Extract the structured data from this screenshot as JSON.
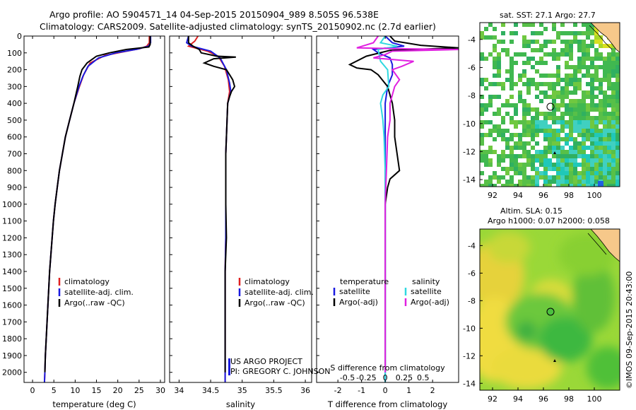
{
  "header": {
    "title_line1": "Argo profile: AO 5904571_14 04-Sep-2015 20150904_989 8.505S 96.538E",
    "title_line2": "Climatology: CARS2009. Satellite-adjusted climatology: synTS_20150902.nc (2.7d earlier)"
  },
  "colors": {
    "climatology": "#e02020",
    "satellite": "#1a1ae0",
    "argo": "#000000",
    "satellite_s": "#30d8e0",
    "argo_s": "#e020e0"
  },
  "chart_data": [
    {
      "type": "line",
      "id": "temperature",
      "xlabel": "temperature (deg C)",
      "ylabel": "",
      "xlim": [
        -2,
        31
      ],
      "ylim": [
        2060,
        0
      ],
      "xticks": [
        0,
        5,
        10,
        15,
        20,
        25,
        30
      ],
      "yticks": [
        0,
        100,
        200,
        300,
        400,
        500,
        600,
        700,
        800,
        900,
        1000,
        1100,
        1200,
        1300,
        1400,
        1500,
        1600,
        1700,
        1800,
        1900,
        2000
      ],
      "legend": [
        "climatology",
        "satellite-adj. clim.",
        "Argo(..raw -QC)"
      ],
      "series": [
        {
          "name": "climatology",
          "color": "#e02020",
          "points": [
            [
              27.4,
              0
            ],
            [
              27.4,
              40
            ],
            [
              26.8,
              60
            ],
            [
              25.2,
              75
            ],
            [
              21,
              95
            ],
            [
              17,
              115
            ],
            [
              13.5,
              160
            ],
            [
              12,
              230
            ],
            [
              11,
              300
            ],
            [
              9.7,
              400
            ],
            [
              8.7,
              500
            ],
            [
              7.7,
              600
            ],
            [
              7,
              700
            ],
            [
              6.3,
              800
            ],
            [
              5.8,
              900
            ],
            [
              5.3,
              1000
            ],
            [
              4.9,
              1100
            ],
            [
              4.6,
              1200
            ],
            [
              4.3,
              1300
            ],
            [
              4,
              1400
            ],
            [
              3.8,
              1500
            ],
            [
              3.6,
              1600
            ],
            [
              3.4,
              1700
            ],
            [
              3.2,
              1800
            ],
            [
              3,
              1900
            ],
            [
              2.9,
              2000
            ],
            [
              2.8,
              2060
            ]
          ]
        },
        {
          "name": "satellite-adj. clim.",
          "color": "#1a1ae0",
          "points": [
            [
              27.7,
              0
            ],
            [
              27.7,
              40
            ],
            [
              27.2,
              60
            ],
            [
              24.5,
              78
            ],
            [
              19.5,
              100
            ],
            [
              15.5,
              130
            ],
            [
              13,
              180
            ],
            [
              11.8,
              240
            ],
            [
              10.9,
              300
            ],
            [
              9.7,
              400
            ],
            [
              8.7,
              500
            ],
            [
              7.7,
              600
            ],
            [
              7,
              700
            ],
            [
              6.3,
              800
            ],
            [
              5.8,
              900
            ],
            [
              5.3,
              1000
            ],
            [
              4.9,
              1100
            ],
            [
              4.6,
              1200
            ],
            [
              4.3,
              1300
            ],
            [
              4,
              1400
            ],
            [
              3.8,
              1500
            ],
            [
              3.6,
              1600
            ],
            [
              3.4,
              1700
            ],
            [
              3.2,
              1800
            ],
            [
              3,
              1900
            ],
            [
              2.9,
              2000
            ],
            [
              2.8,
              2060
            ]
          ]
        },
        {
          "name": "Argo(..raw -QC)",
          "color": "#000000",
          "points": [
            [
              27.6,
              0
            ],
            [
              27.6,
              50
            ],
            [
              27.3,
              65
            ],
            [
              22,
              80
            ],
            [
              18,
              100
            ],
            [
              15,
              120
            ],
            [
              12.8,
              160
            ],
            [
              11.6,
              200
            ],
            [
              11.1,
              240
            ],
            [
              10.6,
              300
            ],
            [
              9.7,
              400
            ],
            [
              8.7,
              500
            ],
            [
              7.7,
              600
            ],
            [
              7,
              700
            ],
            [
              6.3,
              800
            ],
            [
              5.8,
              900
            ],
            [
              5.3,
              1000
            ],
            [
              4.9,
              1100
            ],
            [
              4.6,
              1200
            ],
            [
              4.3,
              1300
            ],
            [
              4,
              1400
            ],
            [
              3.8,
              1500
            ],
            [
              3.6,
              1600
            ],
            [
              3.4,
              1700
            ],
            [
              3.2,
              1800
            ],
            [
              3,
              1900
            ],
            [
              2.9,
              2000
            ]
          ]
        }
      ]
    },
    {
      "type": "line",
      "id": "salinity",
      "xlabel": "salinity",
      "ylabel": "",
      "xlim": [
        33.85,
        36.1
      ],
      "ylim": [
        2060,
        0
      ],
      "xticks": [
        34,
        34.5,
        35,
        35.5,
        36
      ],
      "legend": [
        "climatology",
        "satellite-adj. clim.",
        "Argo(..raw -QC)"
      ],
      "annotation": [
        "US ARGO PROJECT",
        "PI: GREGORY C. JOHNSON"
      ],
      "series": [
        {
          "name": "climatology",
          "color": "#e02020",
          "points": [
            [
              34.3,
              0
            ],
            [
              34.25,
              30
            ],
            [
              34.15,
              60
            ],
            [
              34.45,
              90
            ],
            [
              34.62,
              120
            ],
            [
              34.72,
              180
            ],
            [
              34.78,
              260
            ],
            [
              34.8,
              330
            ],
            [
              34.77,
              400
            ],
            [
              34.76,
              500
            ],
            [
              34.75,
              600
            ],
            [
              34.74,
              700
            ],
            [
              34.74,
              800
            ],
            [
              34.74,
              1000
            ],
            [
              34.74,
              1200
            ],
            [
              34.73,
              1400
            ],
            [
              34.73,
              1600
            ],
            [
              34.73,
              1800
            ],
            [
              34.73,
              2060
            ]
          ]
        },
        {
          "name": "satellite-adj. clim.",
          "color": "#1a1ae0",
          "points": [
            [
              34.15,
              0
            ],
            [
              34.12,
              40
            ],
            [
              34.2,
              60
            ],
            [
              34.5,
              90
            ],
            [
              34.65,
              130
            ],
            [
              34.75,
              200
            ],
            [
              34.8,
              280
            ],
            [
              34.82,
              330
            ],
            [
              34.77,
              400
            ],
            [
              34.76,
              500
            ],
            [
              34.75,
              600
            ],
            [
              34.74,
              700
            ],
            [
              34.74,
              800
            ],
            [
              34.74,
              1000
            ],
            [
              34.74,
              1200
            ],
            [
              34.73,
              1400
            ],
            [
              34.73,
              1600
            ],
            [
              34.73,
              1800
            ],
            [
              34.73,
              2060
            ]
          ]
        },
        {
          "name": "Argo(..raw -QC)",
          "color": "#000000",
          "points": [
            [
              34.15,
              0
            ],
            [
              34.15,
              40
            ],
            [
              34.22,
              60
            ],
            [
              34.32,
              80
            ],
            [
              34.35,
              100
            ],
            [
              34.6,
              120
            ],
            [
              34.9,
              125
            ],
            [
              34.55,
              135
            ],
            [
              34.4,
              160
            ],
            [
              34.55,
              180
            ],
            [
              34.75,
              200
            ],
            [
              34.8,
              230
            ],
            [
              34.85,
              260
            ],
            [
              34.88,
              300
            ],
            [
              34.83,
              330
            ],
            [
              34.8,
              360
            ],
            [
              34.77,
              400
            ],
            [
              34.76,
              500
            ],
            [
              34.75,
              600
            ],
            [
              34.74,
              700
            ],
            [
              34.74,
              800
            ],
            [
              34.74,
              1000
            ],
            [
              34.75,
              1200
            ],
            [
              34.73,
              1400
            ],
            [
              34.73,
              1600
            ],
            [
              34.73,
              1800
            ],
            [
              34.73,
              2000
            ]
          ]
        }
      ]
    },
    {
      "type": "line",
      "id": "difference",
      "xlabel": "T difference from climatology",
      "xlabel_top": "S difference from climatology",
      "xlim": [
        -2.9,
        3.1
      ],
      "ylim": [
        2060,
        0
      ],
      "xticks": [
        -2,
        -1,
        0,
        1,
        2
      ],
      "xticks_s": [
        "-0.5",
        "-0.25",
        "0",
        "0.25",
        "0.5"
      ],
      "legend_title_left": "temperature",
      "legend_title_right": "salinity",
      "legend": [
        "satellite",
        "Argo(-adj)",
        "satellite",
        "Argo(-adj)"
      ],
      "series": [
        {
          "name": "T satellite",
          "color": "#1a1ae0",
          "points": [
            [
              0,
              0
            ],
            [
              0.3,
              40
            ],
            [
              0.8,
              60
            ],
            [
              -0.5,
              80
            ],
            [
              -0.3,
              100
            ],
            [
              0.2,
              130
            ],
            [
              0.3,
              170
            ],
            [
              0.3,
              230
            ],
            [
              0.1,
              300
            ],
            [
              0,
              400
            ],
            [
              0,
              600
            ],
            [
              0,
              1000
            ],
            [
              0,
              1500
            ],
            [
              0,
              2060
            ]
          ]
        },
        {
          "name": "T Argo(-adj)",
          "color": "#000000",
          "points": [
            [
              0.2,
              0
            ],
            [
              0.4,
              30
            ],
            [
              1.5,
              55
            ],
            [
              3.1,
              70
            ],
            [
              0.2,
              85
            ],
            [
              -0.8,
              120
            ],
            [
              -1.5,
              170
            ],
            [
              -1.2,
              190
            ],
            [
              -0.6,
              200
            ],
            [
              -0.3,
              230
            ],
            [
              0.1,
              300
            ],
            [
              0.3,
              400
            ],
            [
              0.4,
              500
            ],
            [
              0.4,
              600
            ],
            [
              0.5,
              700
            ],
            [
              0.6,
              800
            ],
            [
              0.2,
              850
            ],
            [
              0.1,
              900
            ],
            [
              0,
              1000
            ],
            [
              0,
              1500
            ],
            [
              0,
              2000
            ]
          ]
        },
        {
          "name": "S satellite",
          "color": "#30d8e0",
          "points": [
            [
              0,
              0
            ],
            [
              -0.2,
              40
            ],
            [
              0.5,
              60
            ],
            [
              -0.3,
              80
            ],
            [
              -0.2,
              150
            ],
            [
              0.1,
              200
            ],
            [
              0.15,
              300
            ],
            [
              -0.1,
              350
            ],
            [
              -0.2,
              400
            ],
            [
              -0.1,
              500
            ],
            [
              -0.05,
              600
            ],
            [
              0,
              800
            ],
            [
              0,
              1000
            ],
            [
              0,
              1500
            ],
            [
              0,
              2060
            ]
          ]
        },
        {
          "name": "S Argo(-adj)",
          "color": "#e020e0",
          "points": [
            [
              -0.3,
              0
            ],
            [
              -0.5,
              40
            ],
            [
              -1.2,
              70
            ],
            [
              0.3,
              75
            ],
            [
              3.1,
              80
            ],
            [
              0.3,
              90
            ],
            [
              0,
              110
            ],
            [
              -0.5,
              130
            ],
            [
              1.2,
              150
            ],
            [
              0.7,
              180
            ],
            [
              0.3,
              200
            ],
            [
              0.6,
              260
            ],
            [
              0.4,
              300
            ],
            [
              0.2,
              400
            ],
            [
              0.2,
              500
            ],
            [
              0.1,
              600
            ],
            [
              0.05,
              800
            ],
            [
              0,
              1000
            ],
            [
              0,
              1500
            ],
            [
              0,
              2000
            ]
          ]
        }
      ]
    }
  ],
  "maps": {
    "top": {
      "label": "sat. SST: 27.1  Argo: 27.7",
      "xticks": [
        "92",
        "94",
        "96",
        "98",
        "100"
      ],
      "yticks": [
        "-4",
        "-6",
        "-8",
        "-10",
        "-12",
        "-14"
      ],
      "lons": [
        92,
        94,
        96,
        98,
        100
      ],
      "lats": [
        -4,
        -6,
        -8,
        -10,
        -12,
        -14
      ],
      "xlim": [
        91,
        102
      ],
      "ylim": [
        -14.5,
        -2.8
      ],
      "profile": {
        "lon": 96.5,
        "lat": -8.5
      }
    },
    "bottom": {
      "label_line1": "Altim. SLA: 0.15",
      "label_line2": "Argo h1000: 0.07  h2000: 0.058",
      "xticks": [
        "92",
        "94",
        "96",
        "98",
        "100"
      ],
      "yticks": [
        "-4",
        "-6",
        "-8",
        "-10",
        "-12",
        "-14"
      ],
      "lons": [
        92,
        94,
        96,
        98,
        100
      ],
      "lats": [
        -4,
        -6,
        -8,
        -10,
        -12,
        -14
      ],
      "xlim": [
        91,
        102
      ],
      "ylim": [
        -14.5,
        -2.8
      ],
      "profile": {
        "lon": 96.5,
        "lat": -8.5
      }
    }
  },
  "footer": {
    "credit": "©IMOS 09-Sep-2015 20:43:00"
  }
}
